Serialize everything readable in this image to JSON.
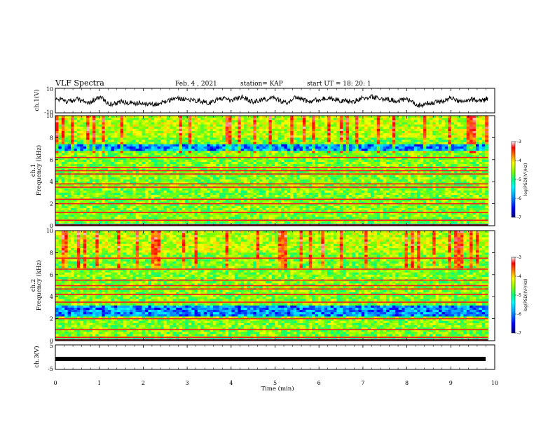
{
  "header": {
    "title": "VLF Spectra",
    "date": "Feb. 4 , 2021",
    "station": "station= KAP",
    "start_ut": "start UT =   18: 20: 1"
  },
  "chart_data": [
    {
      "type": "line",
      "panel": "ch1-waveform",
      "ylabel": "ch.1(V)",
      "ylim": [
        -10,
        10
      ],
      "yticks": [
        "10",
        "-10"
      ],
      "xlim": [
        0,
        10
      ],
      "x": [
        0,
        0.25,
        0.5,
        0.75,
        1,
        1.25,
        1.5,
        1.75,
        2,
        2.25,
        2.5,
        2.75,
        3,
        3.25,
        3.5,
        3.75,
        4,
        4.25,
        4.5,
        4.75,
        5,
        5.25,
        5.5,
        5.75,
        6,
        6.25,
        6.5,
        6.75,
        7,
        7.25,
        7.5,
        7.75,
        8,
        8.25,
        8.5,
        8.75,
        9,
        9.25,
        9.5,
        9.75,
        9.85
      ],
      "y": [
        2,
        -1,
        1,
        -2,
        3,
        -3,
        -1,
        -2,
        -2,
        -3,
        -1,
        2,
        1,
        0,
        -2,
        2,
        0,
        3,
        -1,
        1,
        2,
        -2,
        3,
        -1,
        1,
        2,
        0,
        -1,
        2,
        3,
        1,
        0,
        1,
        -4,
        -2,
        -1,
        2,
        -1,
        1,
        0,
        2
      ],
      "color": "#000000"
    },
    {
      "type": "heatmap",
      "panel": "ch1-spectrogram",
      "ylabel": "ch.1\nFrequency (kHz)",
      "ylim": [
        0,
        10
      ],
      "yticks": [
        "0",
        "2",
        "4",
        "6",
        "8",
        "10"
      ],
      "xlim": [
        0,
        9.85
      ],
      "colorbar": {
        "label": "log(PSD)(V²/Hz)",
        "range": [
          -7,
          -3
        ],
        "ticks": [
          "-3",
          "-4",
          "-5",
          "-6",
          "-7"
        ]
      },
      "features": {
        "noise_band_khz": [
          6.8,
          7.4
        ],
        "horizontal_lines_khz": [
          0.5,
          1.2,
          2.0,
          2.4,
          3.5,
          3.8,
          4.7,
          5.0,
          5.3,
          6.2
        ]
      }
    },
    {
      "type": "heatmap",
      "panel": "ch2-spectrogram",
      "ylabel": "ch.2\nFrequency (kHz)",
      "ylim": [
        0,
        10
      ],
      "yticks": [
        "0",
        "2",
        "4",
        "6",
        "8",
        "10"
      ],
      "xlim": [
        0,
        9.85
      ],
      "colorbar": {
        "label": "log(PSD)(V²/Hz)",
        "range": [
          -7,
          -3
        ],
        "ticks": [
          "-3",
          "-4",
          "-5",
          "-6",
          "-7"
        ]
      },
      "features": {
        "noise_band_khz": [
          2.2,
          3.2
        ],
        "horizontal_lines_khz": [
          0.3,
          1.0,
          2.0,
          3.5,
          4.2,
          4.7,
          5.0,
          5.5,
          6.5,
          7.5
        ]
      }
    },
    {
      "type": "line",
      "panel": "ch3-waveform",
      "ylabel": "ch.3(V)",
      "ylim": [
        -5,
        5
      ],
      "yticks": [
        "5",
        "-5"
      ],
      "xlim": [
        0,
        10
      ],
      "x": [
        0,
        9.85
      ],
      "y": [
        0,
        0
      ],
      "color": "#000000"
    }
  ],
  "xaxis": {
    "label": "Time (min)",
    "ticks": [
      "0",
      "1",
      "2",
      "3",
      "4",
      "5",
      "6",
      "7",
      "8",
      "9",
      "10"
    ]
  },
  "colormap": [
    "#000080",
    "#0000ff",
    "#00a0ff",
    "#00ffff",
    "#00ff80",
    "#80ff00",
    "#ffff00",
    "#ff8000",
    "#ff0000",
    "#ffffff"
  ]
}
